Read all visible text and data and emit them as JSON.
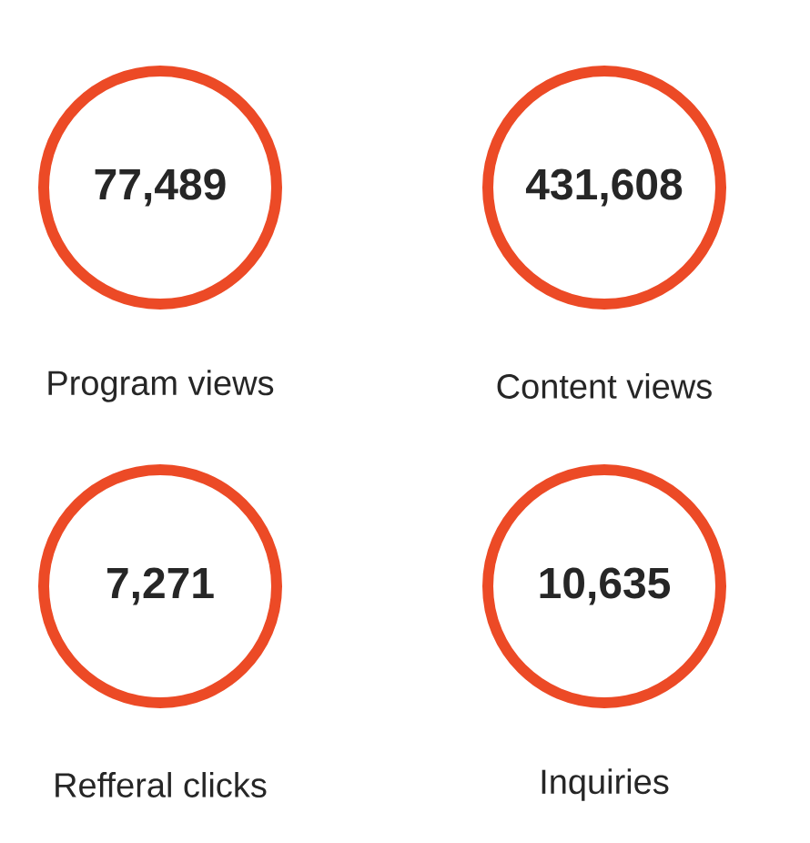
{
  "chart_data": {
    "type": "other",
    "categories": [
      "Program views",
      "Content views",
      "Refferal clicks",
      "Inquiries"
    ],
    "values": [
      77489,
      431608,
      7271,
      10635
    ],
    "value_labels": [
      "77,489",
      "431,608",
      "7,271",
      "10,635"
    ],
    "color": "#ec4a26"
  }
}
